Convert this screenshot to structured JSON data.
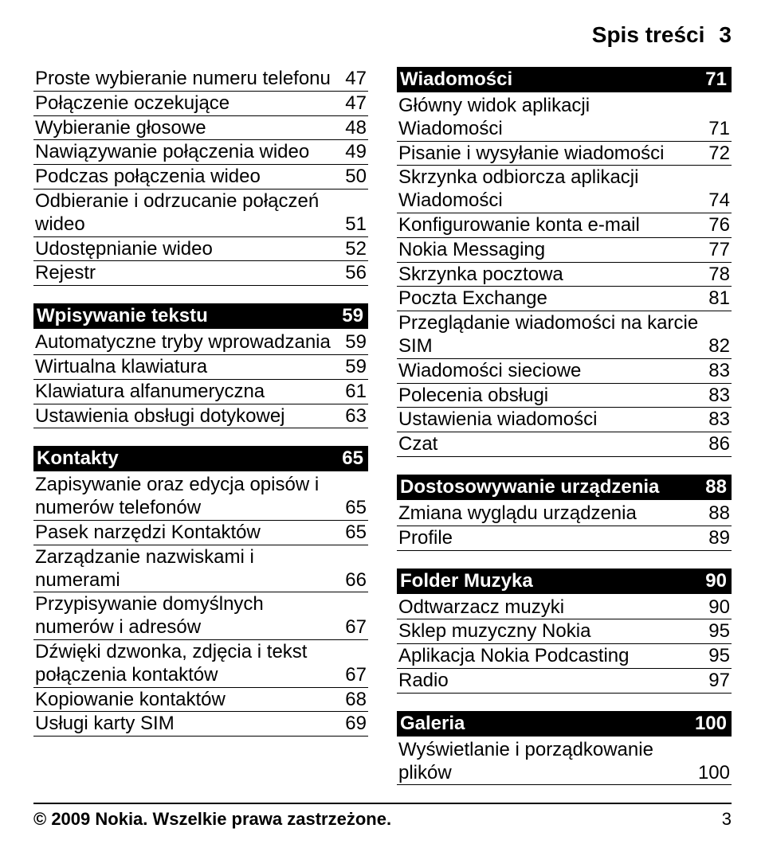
{
  "header": {
    "title": "Spis treści",
    "page": "3"
  },
  "left": {
    "groups": [
      {
        "rows": [
          {
            "label": "Proste wybieranie numeru telefonu",
            "page": "47"
          },
          {
            "label": "Połączenie oczekujące",
            "page": "47"
          },
          {
            "label": "Wybieranie głosowe",
            "page": "48"
          },
          {
            "label": "Nawiązywanie połączenia wideo",
            "page": "49"
          },
          {
            "label": "Podczas połączenia wideo",
            "page": "50"
          },
          {
            "label": "Odbieranie i odrzucanie połączeń wideo",
            "page": "51"
          },
          {
            "label": "Udostępnianie wideo",
            "page": "52"
          },
          {
            "label": "Rejestr",
            "page": "56"
          }
        ]
      },
      {
        "head": {
          "label": "Wpisywanie tekstu",
          "page": "59"
        },
        "rows": [
          {
            "label": "Automatyczne tryby wprowadzania",
            "page": "59"
          },
          {
            "label": "Wirtualna klawiatura",
            "page": "59"
          },
          {
            "label": "Klawiatura alfanumeryczna",
            "page": "61"
          },
          {
            "label": "Ustawienia obsługi dotykowej",
            "page": "63"
          }
        ]
      },
      {
        "head": {
          "label": "Kontakty",
          "page": "65"
        },
        "rows": [
          {
            "label": "Zapisywanie oraz edycja opisów i numerów telefonów",
            "page": "65"
          },
          {
            "label": "Pasek narzędzi Kontaktów",
            "page": "65"
          },
          {
            "label": "Zarządzanie nazwiskami i numerami",
            "page": "66"
          },
          {
            "label": "Przypisywanie domyślnych numerów i adresów",
            "page": "67"
          },
          {
            "label": "Dźwięki dzwonka, zdjęcia i tekst połączenia kontaktów",
            "page": "67"
          },
          {
            "label": "Kopiowanie kontaktów",
            "page": "68"
          },
          {
            "label": "Usługi karty SIM",
            "page": "69"
          }
        ]
      }
    ]
  },
  "right": {
    "groups": [
      {
        "head": {
          "label": "Wiadomości",
          "page": "71",
          "first": true
        },
        "rows": [
          {
            "label": "Główny widok aplikacji Wiadomości",
            "page": "71"
          },
          {
            "label": "Pisanie i wysyłanie wiadomości",
            "page": "72"
          },
          {
            "label": "Skrzynka odbiorcza aplikacji Wiadomości",
            "page": "74"
          },
          {
            "label": "Konfigurowanie konta e-mail",
            "page": "76"
          },
          {
            "label": "Nokia Messaging",
            "page": "77"
          },
          {
            "label": "Skrzynka pocztowa",
            "page": "78"
          },
          {
            "label": "Poczta Exchange",
            "page": "81"
          },
          {
            "label": "Przeglądanie wiadomości na karcie SIM",
            "page": "82"
          },
          {
            "label": "Wiadomości sieciowe",
            "page": "83"
          },
          {
            "label": "Polecenia obsługi",
            "page": "83"
          },
          {
            "label": "Ustawienia wiadomości",
            "page": "83"
          },
          {
            "label": "Czat",
            "page": "86"
          }
        ]
      },
      {
        "head": {
          "label": "Dostosowywanie urządzenia",
          "page": "88"
        },
        "rows": [
          {
            "label": "Zmiana wyglądu urządzenia",
            "page": "88"
          },
          {
            "label": "Profile",
            "page": "89"
          }
        ]
      },
      {
        "head": {
          "label": "Folder Muzyka",
          "page": "90"
        },
        "rows": [
          {
            "label": "Odtwarzacz muzyki",
            "page": "90"
          },
          {
            "label": "Sklep muzyczny Nokia",
            "page": "95"
          },
          {
            "label": "Aplikacja Nokia Podcasting",
            "page": "95"
          },
          {
            "label": "Radio",
            "page": "97"
          }
        ]
      },
      {
        "head": {
          "label": "Galeria",
          "page": "100"
        },
        "rows": [
          {
            "label": "Wyświetlanie i porządkowanie plików",
            "page": "100"
          }
        ]
      }
    ]
  },
  "footer": {
    "copyright": "© 2009 Nokia. Wszelkie prawa zastrzeżone.",
    "page": "3"
  }
}
